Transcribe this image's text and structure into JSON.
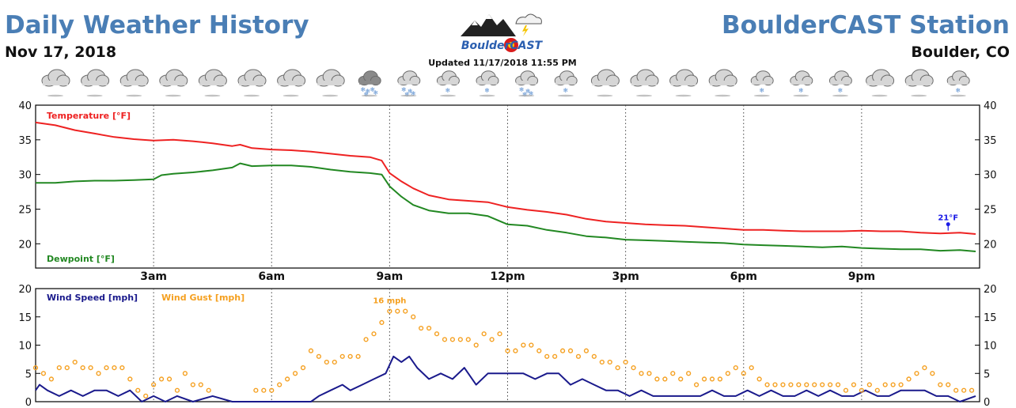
{
  "header": {
    "title": "Daily Weather History",
    "date": "Nov 17, 2018",
    "station": "BoulderCAST Station",
    "location": "Boulder, CO",
    "updated": "Updated 11/17/2018 11:55 PM",
    "logo_text": "BoulderCAST"
  },
  "sky_icons": [
    "cloudy",
    "cloudy",
    "cloudy",
    "cloudy",
    "cloudy",
    "cloudy",
    "cloudy",
    "cloudy",
    "rain-snow",
    "snow",
    "snow-light",
    "snow-light",
    "snow",
    "snow-light",
    "cloudy",
    "cloudy",
    "cloudy",
    "cloudy",
    "snow-light",
    "snow-light",
    "snow-light",
    "cloudy",
    "cloudy",
    "snow-light"
  ],
  "chart_data": [
    {
      "type": "line",
      "x_unit": "hour",
      "xlim": [
        0,
        24
      ],
      "ylim": [
        16.5,
        40
      ],
      "yticks": [
        20,
        25,
        30,
        35,
        40
      ],
      "xticks": [
        {
          "x": 3,
          "label": "3am"
        },
        {
          "x": 6,
          "label": "6am"
        },
        {
          "x": 9,
          "label": "9am"
        },
        {
          "x": 12,
          "label": "12pm"
        },
        {
          "x": 15,
          "label": "3pm"
        },
        {
          "x": 18,
          "label": "6pm"
        },
        {
          "x": 21,
          "label": "9pm"
        }
      ],
      "series": [
        {
          "name": "Temperature [°F]",
          "color": "#ee2222",
          "x": [
            0,
            0.5,
            1,
            1.5,
            2,
            2.5,
            3,
            3.5,
            4,
            4.5,
            5,
            5.2,
            5.5,
            6,
            6.5,
            7,
            7.5,
            8,
            8.5,
            8.8,
            9,
            9.3,
            9.6,
            10,
            10.5,
            11,
            11.5,
            12,
            12.5,
            13,
            13.5,
            14,
            14.5,
            15,
            15.5,
            16,
            16.5,
            17,
            17.5,
            18,
            18.5,
            19,
            19.5,
            20,
            20.5,
            21,
            21.5,
            22,
            22.5,
            23,
            23.5,
            23.9
          ],
          "y": [
            37.5,
            37.1,
            36.4,
            35.9,
            35.4,
            35.1,
            34.9,
            35.0,
            34.8,
            34.5,
            34.1,
            34.3,
            33.8,
            33.6,
            33.5,
            33.3,
            33.0,
            32.7,
            32.5,
            32.0,
            30.2,
            29.0,
            28.0,
            27.0,
            26.4,
            26.2,
            26.0,
            25.3,
            24.9,
            24.6,
            24.2,
            23.6,
            23.2,
            23.0,
            22.8,
            22.7,
            22.6,
            22.4,
            22.2,
            22.0,
            22.0,
            21.9,
            21.8,
            21.8,
            21.8,
            21.9,
            21.8,
            21.8,
            21.6,
            21.5,
            21.6,
            21.4
          ]
        },
        {
          "name": "Dewpoint [°F]",
          "color": "#228822",
          "x": [
            0,
            0.5,
            1,
            1.5,
            2,
            2.5,
            3,
            3.2,
            3.5,
            4,
            4.5,
            5,
            5.2,
            5.5,
            6,
            6.5,
            7,
            7.5,
            8,
            8.5,
            8.8,
            9,
            9.3,
            9.6,
            10,
            10.5,
            11,
            11.5,
            12,
            12.5,
            13,
            13.5,
            14,
            14.5,
            15,
            15.5,
            16,
            16.5,
            17,
            17.5,
            18,
            18.5,
            19,
            19.5,
            20,
            20.5,
            21,
            21.5,
            22,
            22.5,
            23,
            23.5,
            23.9
          ],
          "y": [
            28.8,
            28.8,
            29.0,
            29.1,
            29.1,
            29.2,
            29.3,
            29.9,
            30.1,
            30.3,
            30.6,
            31.0,
            31.6,
            31.2,
            31.3,
            31.3,
            31.1,
            30.7,
            30.4,
            30.2,
            30.0,
            28.3,
            26.8,
            25.6,
            24.8,
            24.4,
            24.4,
            24.0,
            22.8,
            22.6,
            22.0,
            21.6,
            21.1,
            20.9,
            20.6,
            20.5,
            20.4,
            20.3,
            20.2,
            20.1,
            19.9,
            19.8,
            19.7,
            19.6,
            19.5,
            19.6,
            19.4,
            19.3,
            19.2,
            19.2,
            19.0,
            19.1,
            18.9
          ]
        }
      ],
      "annotations": [
        {
          "x": 23.2,
          "y": 21.9,
          "text": "21°F",
          "color": "#1a1ae6"
        }
      ]
    },
    {
      "type": "line",
      "x_unit": "hour",
      "xlim": [
        0,
        24
      ],
      "ylim": [
        0,
        20
      ],
      "yticks": [
        0,
        5,
        10,
        15,
        20
      ],
      "series": [
        {
          "name": "Wind Speed [mph]",
          "color": "#1a1a8c",
          "x": [
            0,
            0.1,
            0.3,
            0.6,
            0.9,
            1.2,
            1.5,
            1.8,
            2.1,
            2.4,
            2.7,
            3.0,
            3.3,
            3.6,
            4.0,
            4.5,
            5.0,
            5.5,
            6.0,
            6.5,
            7.0,
            7.2,
            7.5,
            7.8,
            8.0,
            8.3,
            8.6,
            8.9,
            9.1,
            9.3,
            9.5,
            9.7,
            10.0,
            10.3,
            10.6,
            10.9,
            11.2,
            11.5,
            11.8,
            12.1,
            12.4,
            12.7,
            13.0,
            13.3,
            13.6,
            13.9,
            14.2,
            14.5,
            14.8,
            15.1,
            15.4,
            15.7,
            16.0,
            16.3,
            16.6,
            16.9,
            17.2,
            17.5,
            17.8,
            18.1,
            18.4,
            18.7,
            19.0,
            19.3,
            19.6,
            19.9,
            20.2,
            20.5,
            20.8,
            21.1,
            21.4,
            21.7,
            22.0,
            22.3,
            22.6,
            22.9,
            23.2,
            23.5,
            23.9
          ],
          "y": [
            2,
            3,
            2,
            1,
            2,
            1,
            2,
            2,
            1,
            2,
            0,
            1,
            0,
            1,
            0,
            1,
            0,
            0,
            0,
            0,
            0,
            1,
            2,
            3,
            2,
            3,
            4,
            5,
            8,
            7,
            8,
            6,
            4,
            5,
            4,
            6,
            3,
            5,
            5,
            5,
            5,
            4,
            5,
            5,
            3,
            4,
            3,
            2,
            2,
            1,
            2,
            1,
            1,
            1,
            1,
            1,
            2,
            1,
            1,
            2,
            1,
            2,
            1,
            1,
            2,
            1,
            2,
            1,
            1,
            2,
            1,
            1,
            2,
            2,
            2,
            1,
            1,
            0,
            1
          ]
        },
        {
          "name": "Wind Gust [mph]",
          "color": "#f5a020",
          "x": [
            0,
            0.2,
            0.4,
            0.6,
            0.8,
            1.0,
            1.2,
            1.4,
            1.6,
            1.8,
            2.0,
            2.2,
            2.4,
            2.6,
            2.8,
            3.0,
            3.2,
            3.4,
            3.6,
            3.8,
            4.0,
            4.2,
            4.4,
            5.6,
            5.8,
            6.0,
            6.2,
            6.4,
            6.6,
            6.8,
            7.0,
            7.2,
            7.4,
            7.6,
            7.8,
            8.0,
            8.2,
            8.4,
            8.6,
            8.8,
            9.0,
            9.2,
            9.4,
            9.6,
            9.8,
            10.0,
            10.2,
            10.4,
            10.6,
            10.8,
            11.0,
            11.2,
            11.4,
            11.6,
            11.8,
            12.0,
            12.2,
            12.4,
            12.6,
            12.8,
            13.0,
            13.2,
            13.4,
            13.6,
            13.8,
            14.0,
            14.2,
            14.4,
            14.6,
            14.8,
            15.0,
            15.2,
            15.4,
            15.6,
            15.8,
            16.0,
            16.2,
            16.4,
            16.6,
            16.8,
            17.0,
            17.2,
            17.4,
            17.6,
            17.8,
            18.0,
            18.2,
            18.4,
            18.6,
            18.8,
            19.0,
            19.2,
            19.4,
            19.6,
            19.8,
            20.0,
            20.2,
            20.4,
            20.6,
            20.8,
            21.0,
            21.2,
            21.4,
            21.6,
            21.8,
            22.0,
            22.2,
            22.4,
            22.6,
            22.8,
            23.0,
            23.2,
            23.4,
            23.6,
            23.8
          ],
          "y": [
            6,
            5,
            4,
            6,
            6,
            7,
            6,
            6,
            5,
            6,
            6,
            6,
            4,
            2,
            1,
            3,
            4,
            4,
            2,
            5,
            3,
            3,
            2,
            2,
            2,
            2,
            3,
            4,
            5,
            6,
            9,
            8,
            7,
            7,
            8,
            8,
            8,
            11,
            12,
            14,
            16,
            16,
            16,
            15,
            13,
            13,
            12,
            11,
            11,
            11,
            11,
            10,
            12,
            11,
            12,
            9,
            9,
            10,
            10,
            9,
            8,
            8,
            9,
            9,
            8,
            9,
            8,
            7,
            7,
            6,
            7,
            6,
            5,
            5,
            4,
            4,
            5,
            4,
            5,
            3,
            4,
            4,
            4,
            5,
            6,
            5,
            6,
            4,
            3,
            3,
            3,
            3,
            3,
            3,
            3,
            3,
            3,
            3,
            2,
            3,
            2,
            3,
            2,
            3,
            3,
            3,
            4,
            5,
            6,
            5,
            3,
            3,
            2,
            2,
            2
          ]
        }
      ],
      "annotations": [
        {
          "x": 9.0,
          "y": 16,
          "text": "16 mph",
          "color": "#f5a020"
        }
      ]
    }
  ]
}
